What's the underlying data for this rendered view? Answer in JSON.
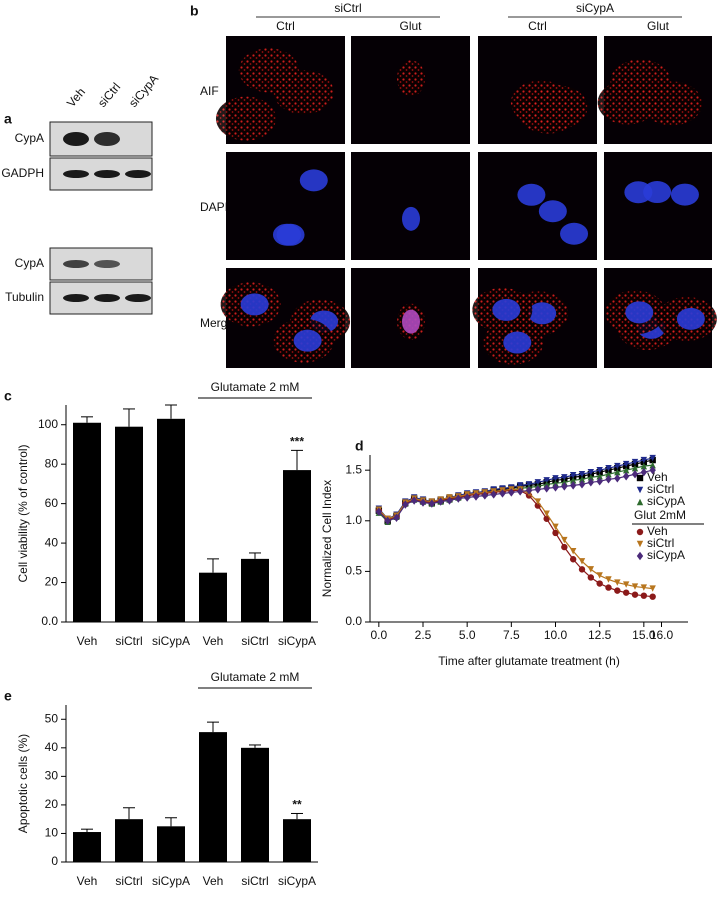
{
  "panel_a": {
    "panel_label": "a",
    "lanes": [
      "Veh",
      "siCtrl",
      "siCypA"
    ],
    "rows": [
      "CypA",
      "GADPH",
      "CypA",
      "Tubulin"
    ]
  },
  "panel_b": {
    "panel_label": "b",
    "groups": [
      "siCtrl",
      "siCypA"
    ],
    "columns": [
      "Ctrl",
      "Glut",
      "Ctrl",
      "Glut"
    ],
    "rows": [
      "AIF",
      "DAPI",
      "Merge"
    ]
  },
  "chart_data": [
    {
      "type": "bar",
      "panel_label": "c",
      "y_label": "Cell viability (% of control)",
      "categories": [
        "Veh",
        "siCtrl",
        "siCypA",
        "Veh",
        "siCtrl",
        "siCypA"
      ],
      "values": [
        101,
        99,
        103,
        25,
        32,
        77
      ],
      "errors": [
        3,
        9,
        7,
        7,
        3,
        10
      ],
      "significance": [
        null,
        null,
        null,
        null,
        null,
        "***"
      ],
      "bracket_label": "Glutamate 2 mM",
      "color": "#000000",
      "ylim": [
        0,
        110
      ],
      "yticks": [
        {
          "value": 0,
          "label": "0.0"
        },
        20,
        40,
        60,
        80,
        100
      ]
    },
    {
      "type": "line",
      "panel_label": "d",
      "x_label": "Time after glutamate treatment (h)",
      "y_label": "Normalized Cell Index",
      "legend_group_title": "Glut 2mM",
      "x": [
        0,
        0.5,
        1,
        1.5,
        2,
        2.5,
        3,
        3.5,
        4,
        4.5,
        5,
        5.5,
        6,
        6.5,
        7,
        7.5,
        8,
        8.5,
        9,
        9.5,
        10,
        10.5,
        11,
        11.5,
        12,
        12.5,
        13,
        13.5,
        14,
        14.5,
        15,
        15.5
      ],
      "series": [
        {
          "name": "Veh",
          "color": "#000000",
          "marker": "square",
          "values": [
            1.1,
            1.0,
            1.05,
            1.18,
            1.22,
            1.2,
            1.18,
            1.2,
            1.22,
            1.24,
            1.26,
            1.27,
            1.28,
            1.3,
            1.31,
            1.32,
            1.34,
            1.35,
            1.36,
            1.38,
            1.4,
            1.41,
            1.43,
            1.44,
            1.46,
            1.48,
            1.5,
            1.52,
            1.54,
            1.56,
            1.58,
            1.6
          ]
        },
        {
          "name": "siCtrl",
          "color": "#1f2a8c",
          "marker": "down",
          "values": [
            1.12,
            1.02,
            1.06,
            1.19,
            1.23,
            1.21,
            1.19,
            1.21,
            1.23,
            1.25,
            1.27,
            1.28,
            1.29,
            1.31,
            1.32,
            1.33,
            1.35,
            1.36,
            1.38,
            1.4,
            1.42,
            1.43,
            1.45,
            1.46,
            1.48,
            1.5,
            1.52,
            1.54,
            1.56,
            1.58,
            1.6,
            1.62
          ]
        },
        {
          "name": "siCypA",
          "color": "#2e6b2e",
          "marker": "up",
          "values": [
            1.08,
            0.99,
            1.04,
            1.17,
            1.21,
            1.19,
            1.17,
            1.19,
            1.21,
            1.23,
            1.25,
            1.26,
            1.27,
            1.29,
            1.3,
            1.31,
            1.32,
            1.33,
            1.34,
            1.36,
            1.37,
            1.38,
            1.4,
            1.41,
            1.43,
            1.44,
            1.46,
            1.48,
            1.5,
            1.52,
            1.54,
            1.55
          ]
        },
        {
          "name": "Veh",
          "color": "#8b1a1a",
          "marker": "circle",
          "values": [
            1.1,
            1.01,
            1.04,
            1.17,
            1.21,
            1.19,
            1.18,
            1.2,
            1.22,
            1.23,
            1.25,
            1.26,
            1.27,
            1.28,
            1.29,
            1.3,
            1.3,
            1.25,
            1.15,
            1.02,
            0.88,
            0.74,
            0.62,
            0.52,
            0.44,
            0.38,
            0.34,
            0.31,
            0.29,
            0.27,
            0.26,
            0.25
          ]
        },
        {
          "name": "siCtrl",
          "color": "#b8761e",
          "marker": "down",
          "values": [
            1.11,
            1.02,
            1.05,
            1.18,
            1.22,
            1.2,
            1.19,
            1.21,
            1.23,
            1.24,
            1.26,
            1.27,
            1.28,
            1.29,
            1.3,
            1.31,
            1.31,
            1.27,
            1.19,
            1.07,
            0.94,
            0.81,
            0.7,
            0.6,
            0.52,
            0.46,
            0.42,
            0.39,
            0.37,
            0.35,
            0.34,
            0.33
          ]
        },
        {
          "name": "siCypA",
          "color": "#4b2a7a",
          "marker": "diamond",
          "values": [
            1.09,
            1.0,
            1.03,
            1.16,
            1.2,
            1.18,
            1.17,
            1.19,
            1.2,
            1.22,
            1.23,
            1.24,
            1.25,
            1.26,
            1.27,
            1.28,
            1.29,
            1.3,
            1.31,
            1.32,
            1.33,
            1.34,
            1.35,
            1.36,
            1.38,
            1.39,
            1.41,
            1.42,
            1.44,
            1.46,
            1.48,
            1.5
          ]
        }
      ],
      "xlim": [
        -0.5,
        17.5
      ],
      "xticks": [
        {
          "value": 0,
          "label": "0.0"
        },
        2.5,
        {
          "value": 5,
          "label": "5.0"
        },
        7.5,
        {
          "value": 10,
          "label": "10.0"
        },
        12.5,
        {
          "value": 15,
          "label": "15.0"
        },
        {
          "value": 16,
          "label": "16.0"
        }
      ],
      "ylim": [
        0,
        1.65
      ],
      "yticks": [
        {
          "value": 0,
          "label": "0.0"
        },
        0.5,
        {
          "value": 1,
          "label": "1.0"
        },
        1.5
      ]
    },
    {
      "type": "bar",
      "panel_label": "e",
      "y_label": "Apoptotic cells (%)",
      "categories": [
        "Veh",
        "siCtrl",
        "siCypA",
        "Veh",
        "siCtrl",
        "siCypA"
      ],
      "values": [
        10.5,
        15,
        12.5,
        45.5,
        40,
        15
      ],
      "errors": [
        1,
        4,
        3,
        3.5,
        1,
        2
      ],
      "significance": [
        null,
        null,
        null,
        null,
        null,
        "**"
      ],
      "bracket_label": "Glutamate 2 mM",
      "color": "#000000",
      "ylim": [
        0,
        55
      ],
      "yticks": [
        0,
        10,
        20,
        30,
        40,
        50
      ]
    }
  ]
}
